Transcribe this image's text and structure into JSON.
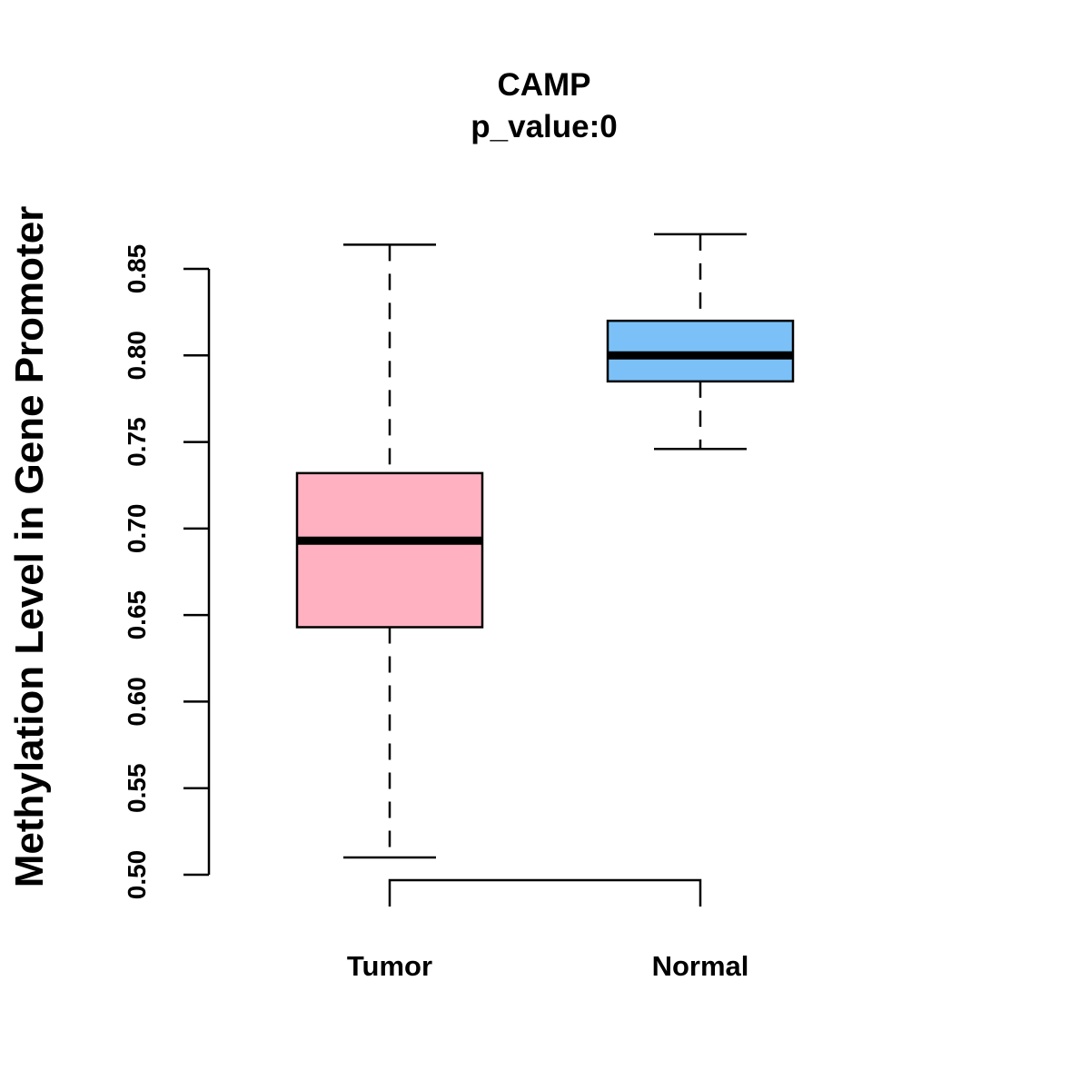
{
  "chart_data": {
    "type": "boxplot",
    "title": "CAMP",
    "subtitle": "p_value:0",
    "ylabel": "Methylation Level in Gene Promoter",
    "xlabel": "",
    "ylim": [
      0.5,
      0.85
    ],
    "yticks": [
      "0.50",
      "0.55",
      "0.60",
      "0.65",
      "0.70",
      "0.75",
      "0.80",
      "0.85"
    ],
    "grid": false,
    "groups": [
      {
        "name": "Tumor",
        "color": "#FFB1C1",
        "whisker_low": 0.51,
        "q1": 0.643,
        "median": 0.693,
        "q3": 0.732,
        "whisker_high": 0.864
      },
      {
        "name": "Normal",
        "color": "#7BC1F7",
        "whisker_low": 0.746,
        "q1": 0.785,
        "median": 0.8,
        "q3": 0.82,
        "whisker_high": 0.87
      }
    ],
    "bracket": {
      "from": "Tumor",
      "to": "Normal"
    }
  }
}
